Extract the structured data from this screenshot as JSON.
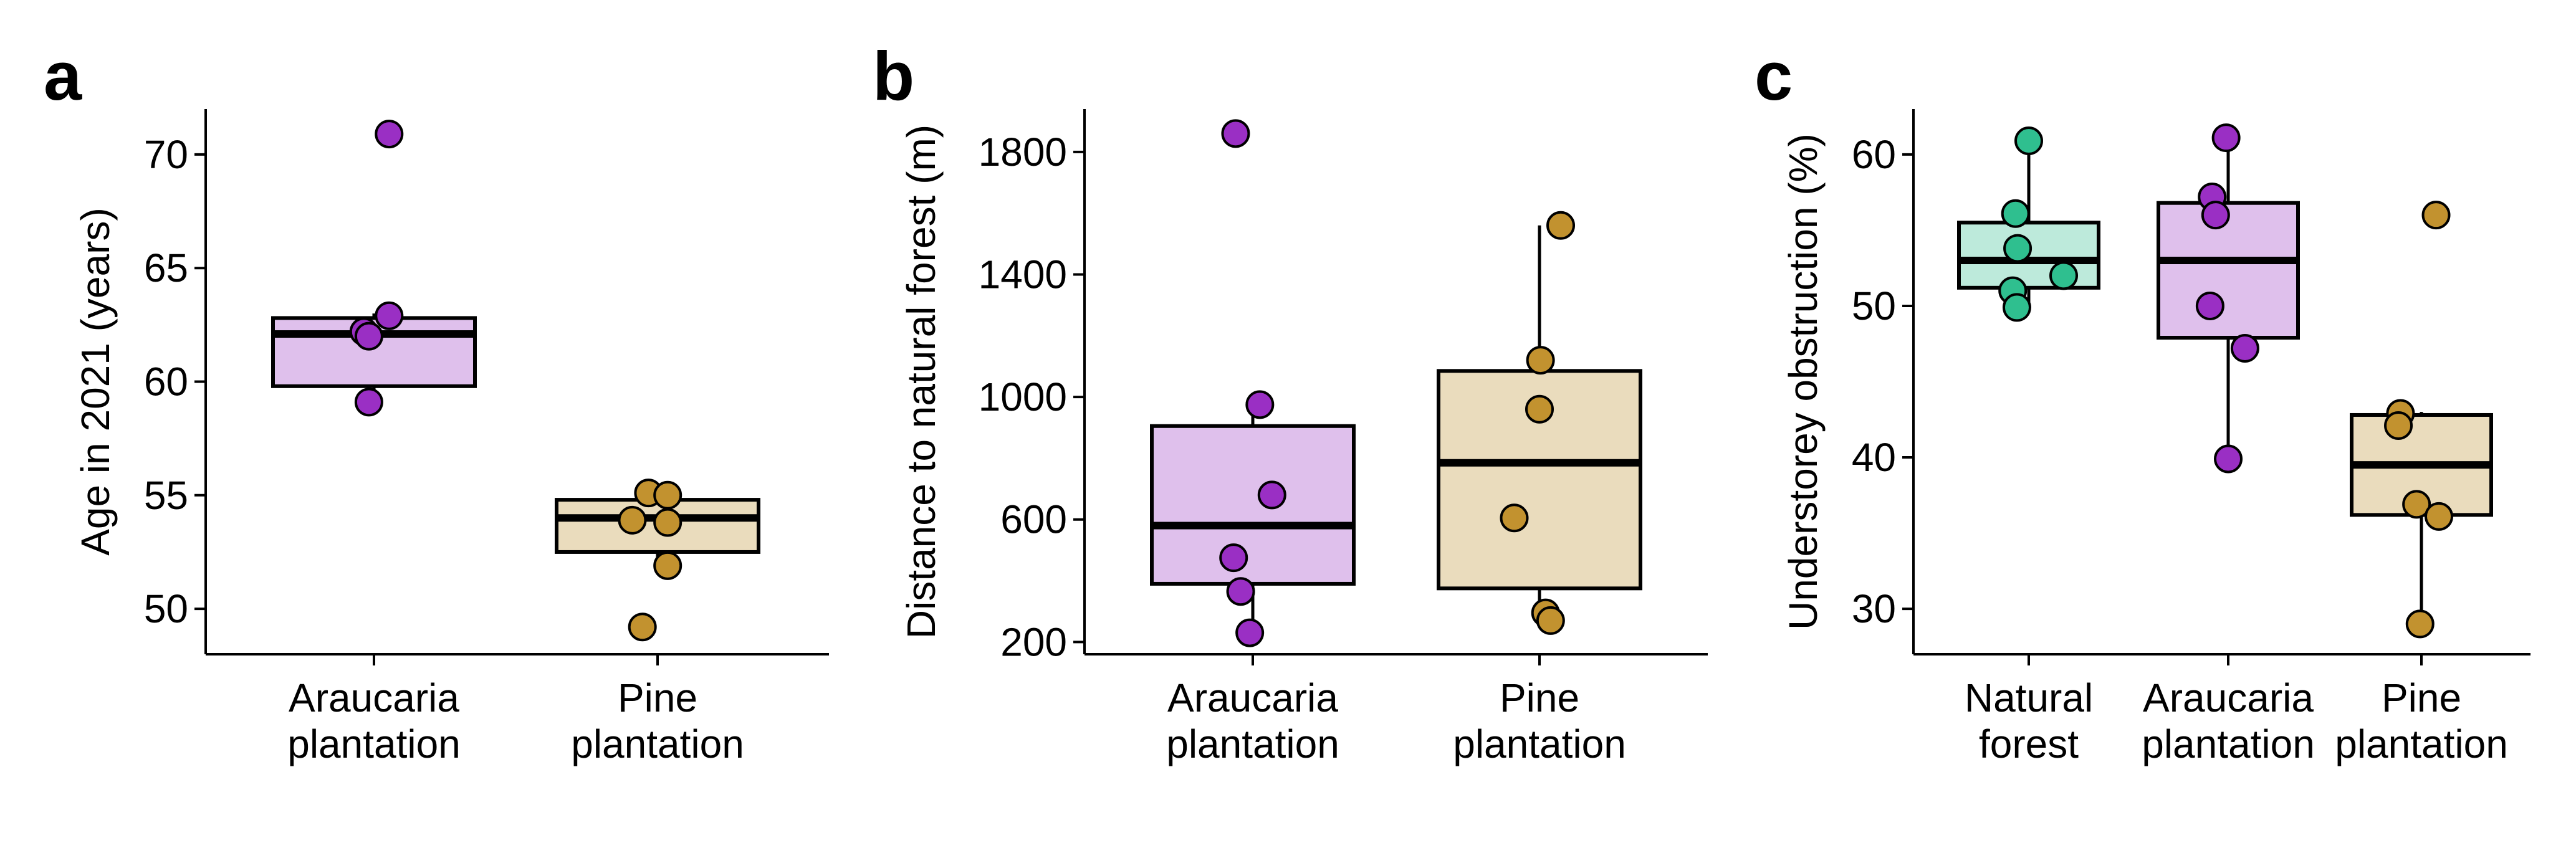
{
  "figure": {
    "panels": [
      {
        "letter": "a",
        "ylabel": "Age in 2021 (years)",
        "ylim": [
          48,
          72
        ],
        "yticks": [
          "50",
          "55",
          "60",
          "65",
          "70"
        ],
        "categories": [
          "Araucaria\nplantation",
          "Pine\nplantation"
        ]
      },
      {
        "letter": "b",
        "ylabel": "Distance to natural forest (m)",
        "ylim": [
          160,
          1940
        ],
        "yticks": [
          "200",
          "600",
          "1000",
          "1400",
          "1800"
        ],
        "categories": [
          "Araucaria\nplantation",
          "Pine\nplantation"
        ]
      },
      {
        "letter": "c",
        "ylabel": "Understorey obstruction (%)",
        "ylim": [
          27,
          63
        ],
        "yticks": [
          "30",
          "40",
          "50",
          "60"
        ],
        "categories": [
          "Natural\nforest",
          "Araucaria\nplantation",
          "Pine\nplantation"
        ]
      }
    ]
  },
  "colors": {
    "natural_fill": "#bdeadb",
    "natural_point": "#2fbf8f",
    "araucaria_fill": "#dfc0ec",
    "araucaria_point": "#9a2fc4",
    "pine_fill": "#eadcbd",
    "pine_point": "#c2922f"
  },
  "chart_data": [
    {
      "type": "box",
      "ylabel": "Age in 2021 (years)",
      "ylim": [
        48,
        72
      ],
      "categories": [
        "Araucaria plantation",
        "Pine plantation"
      ],
      "series": [
        {
          "name": "Araucaria plantation",
          "box": {
            "whisker_low": 59.1,
            "q1": 59.8,
            "median": 62.1,
            "q3": 62.8,
            "whisker_high": 63.0
          },
          "points": [
            70.9,
            62.9,
            62.2,
            62.0,
            59.1
          ]
        },
        {
          "name": "Pine plantation",
          "box": {
            "whisker_low": 52.0,
            "q1": 52.5,
            "median": 54.0,
            "q3": 54.8,
            "whisker_high": 55.0
          },
          "points": [
            55.1,
            55.0,
            53.9,
            53.8,
            51.9,
            49.2
          ]
        }
      ]
    },
    {
      "type": "box",
      "ylabel": "Distance to natural forest (m)",
      "ylim": [
        160,
        1940
      ],
      "categories": [
        "Araucaria plantation",
        "Pine plantation"
      ],
      "series": [
        {
          "name": "Araucaria plantation",
          "box": {
            "whisker_low": 230,
            "q1": 390,
            "median": 580,
            "q3": 905,
            "whisker_high": 975
          },
          "points": [
            1860,
            975,
            680,
            475,
            365,
            230
          ]
        },
        {
          "name": "Pine plantation",
          "box": {
            "whisker_low": 275,
            "q1": 375,
            "median": 785,
            "q3": 1085,
            "whisker_high": 1560
          },
          "points": [
            1560,
            1120,
            960,
            605,
            295,
            270
          ]
        }
      ]
    },
    {
      "type": "box",
      "ylabel": "Understorey obstruction (%)",
      "ylim": [
        27,
        63
      ],
      "categories": [
        "Natural forest",
        "Araucaria plantation",
        "Pine plantation"
      ],
      "series": [
        {
          "name": "Natural forest",
          "box": {
            "whisker_low": 50.0,
            "q1": 51.2,
            "median": 53.0,
            "q3": 55.5,
            "whisker_high": 60.9
          },
          "points": [
            60.9,
            56.1,
            53.8,
            52.0,
            51.0,
            49.9
          ]
        },
        {
          "name": "Araucaria plantation",
          "box": {
            "whisker_low": 39.9,
            "q1": 47.9,
            "median": 53.0,
            "q3": 56.8,
            "whisker_high": 61.1
          },
          "points": [
            61.1,
            57.2,
            56.0,
            50.0,
            47.2,
            39.9
          ]
        },
        {
          "name": "Pine plantation",
          "box": {
            "whisker_low": 29.0,
            "q1": 36.2,
            "median": 39.5,
            "q3": 42.8,
            "whisker_high": 43.0
          },
          "points": [
            56.0,
            42.9,
            42.1,
            36.9,
            36.1,
            29.0
          ]
        }
      ]
    }
  ]
}
